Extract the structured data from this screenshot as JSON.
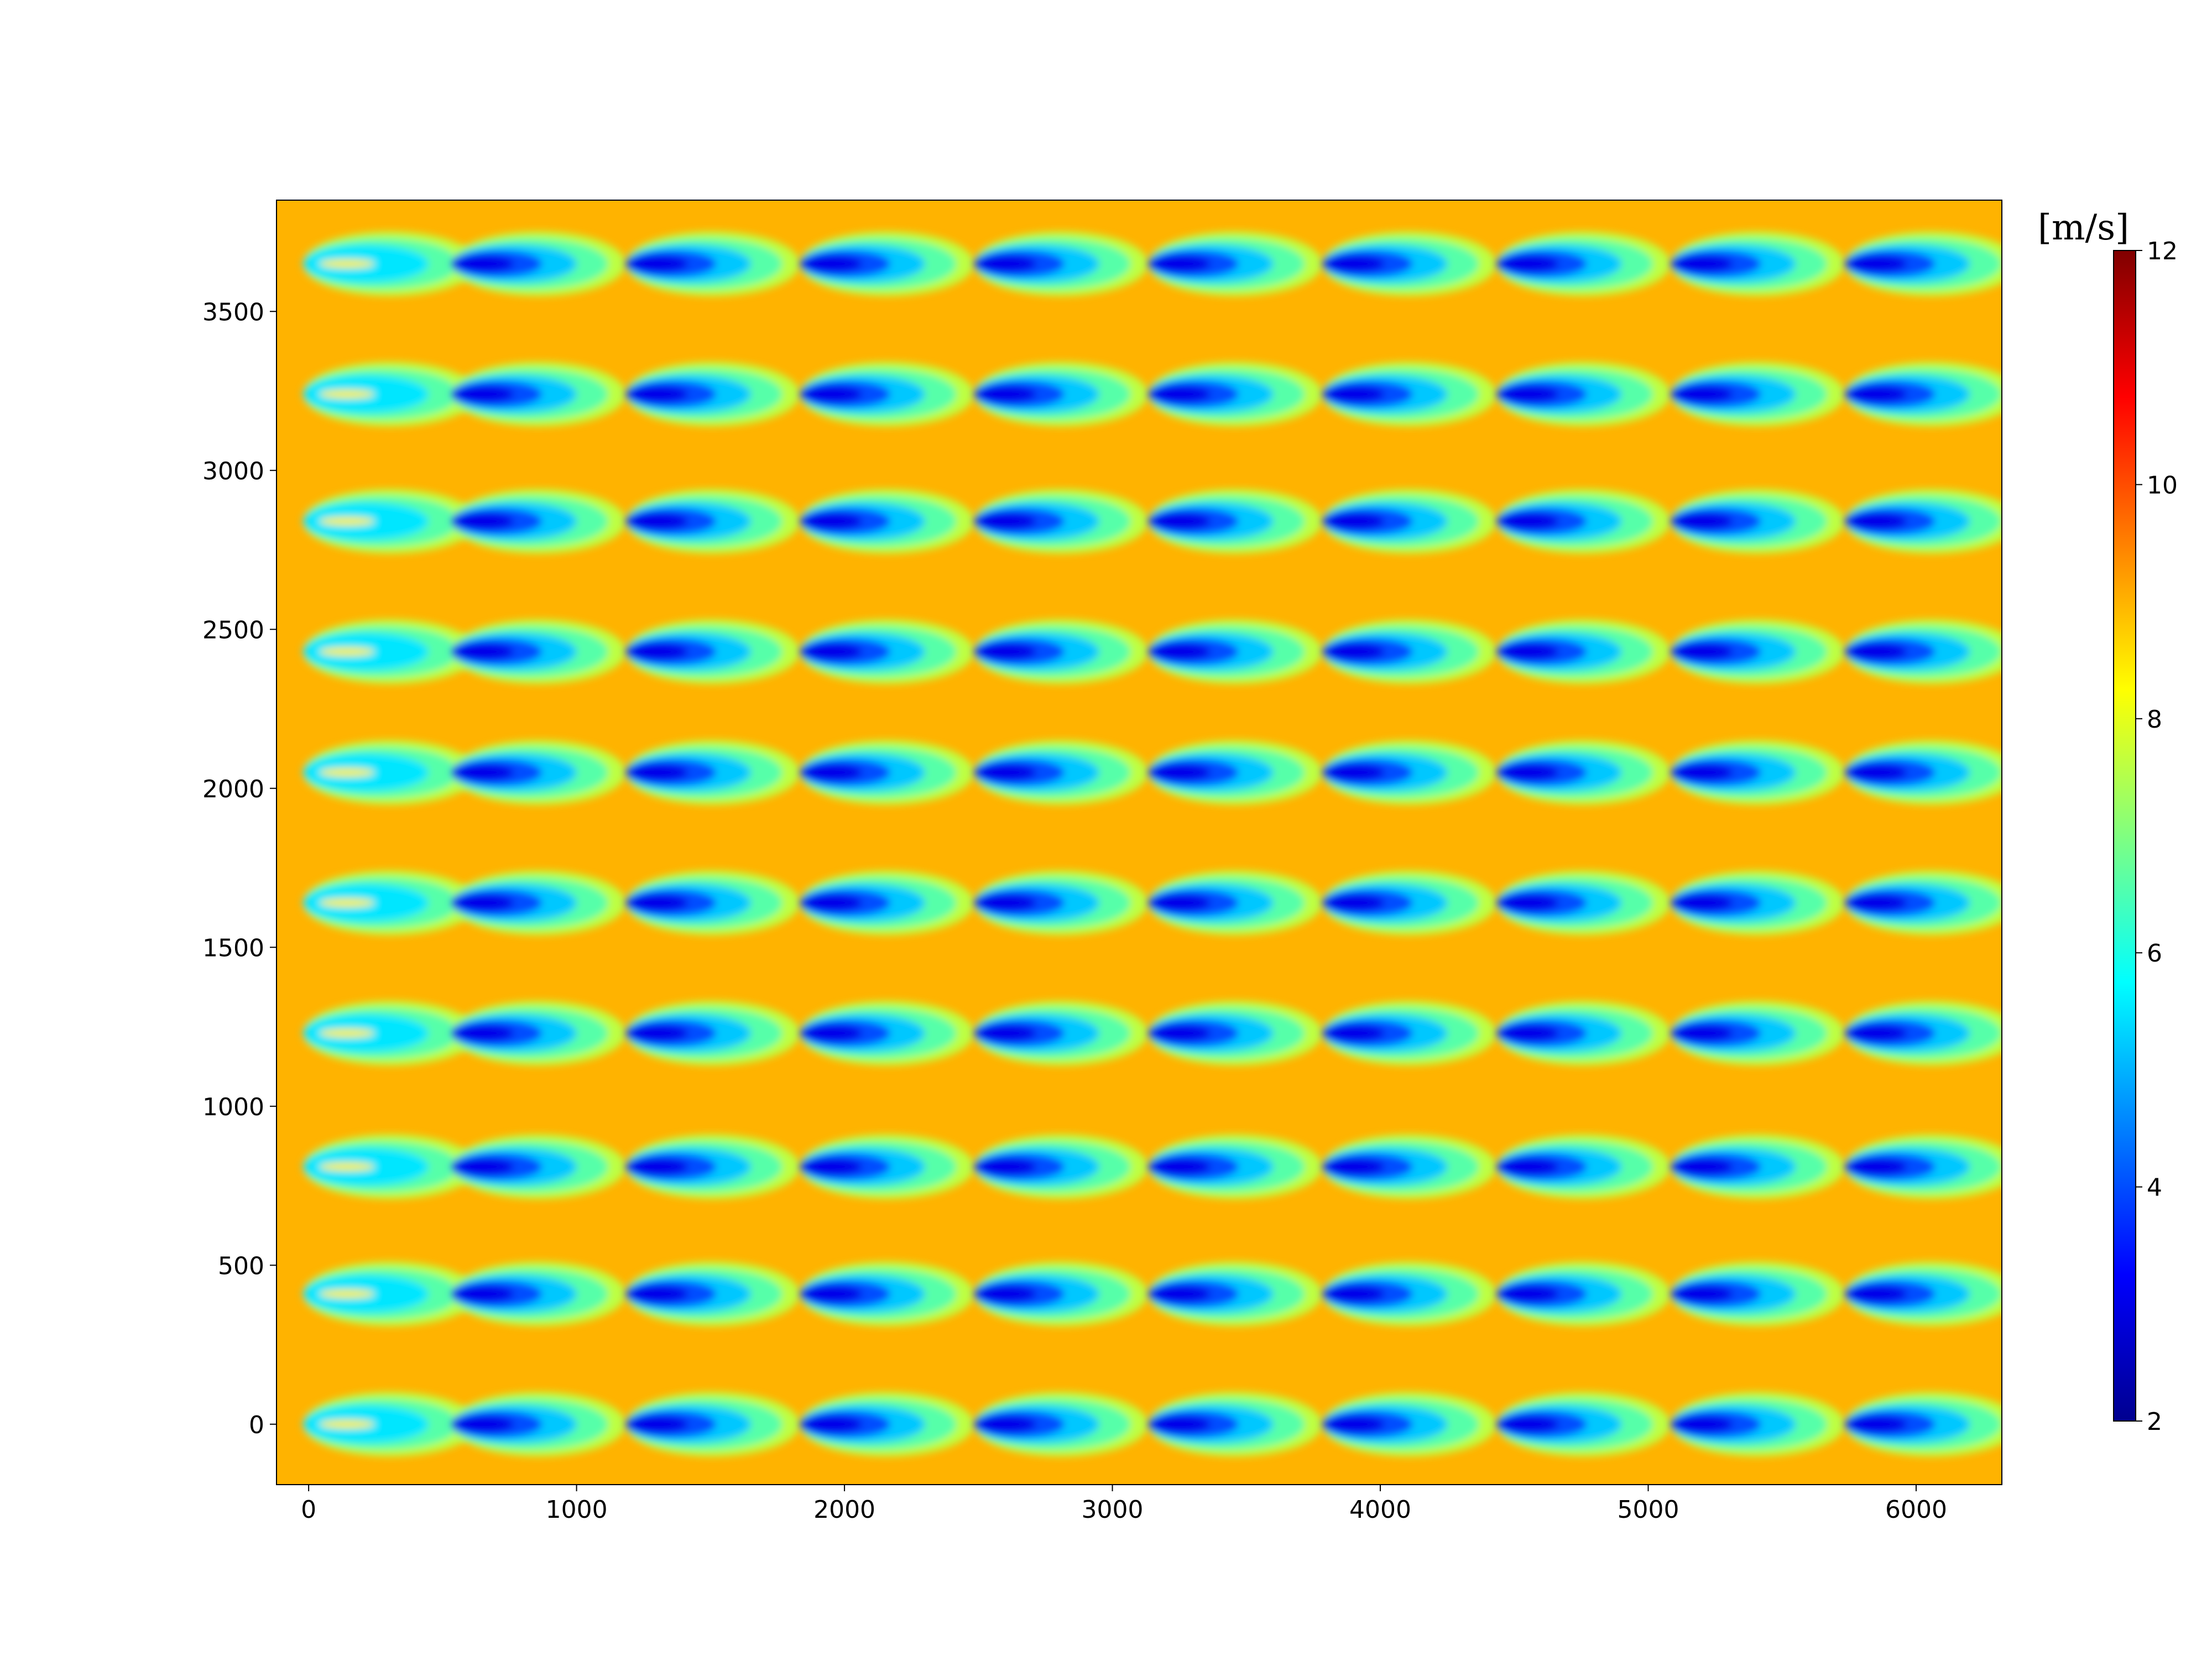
{
  "chart_data": {
    "type": "heatmap",
    "title": "",
    "xlabel": "",
    "ylabel": "",
    "xlim": [
      -120,
      6320
    ],
    "ylim": [
      -190,
      3850
    ],
    "x_ticks": [
      0,
      1000,
      2000,
      3000,
      4000,
      5000,
      6000
    ],
    "y_ticks": [
      0,
      500,
      1000,
      1500,
      2000,
      2500,
      3000,
      3500
    ],
    "x_tick_labels": [
      "0",
      "1000",
      "2000",
      "3000",
      "4000",
      "5000",
      "6000"
    ],
    "y_tick_labels": [
      "0",
      "500",
      "1000",
      "1500",
      "2000",
      "2500",
      "3000",
      "3500"
    ],
    "colormap": "jet",
    "colorbar": {
      "label": "[m/s]",
      "range": [
        2,
        12
      ],
      "ticks": [
        2,
        4,
        6,
        8,
        10,
        12
      ],
      "tick_labels": [
        "2",
        "4",
        "6",
        "8",
        "10",
        "12"
      ]
    },
    "background_speed": 9,
    "turbine_grid": {
      "x": [
        0,
        650,
        1300,
        1950,
        2600,
        3250,
        3900,
        4550,
        5200,
        5850
      ],
      "y": [
        0,
        410,
        810,
        1230,
        1640,
        2050,
        2430,
        2840,
        3240,
        3650
      ]
    },
    "wake_min_speed_first_column": 5.5,
    "wake_min_speed_downstream": 3,
    "grid": false
  },
  "colors": {
    "background": "#ffffff",
    "axis": "#000000",
    "jet_stops": [
      "#00008f",
      "#0000ff",
      "#0080ff",
      "#00ffff",
      "#80ff80",
      "#ffff00",
      "#ff8000",
      "#ff0000",
      "#800000"
    ]
  }
}
